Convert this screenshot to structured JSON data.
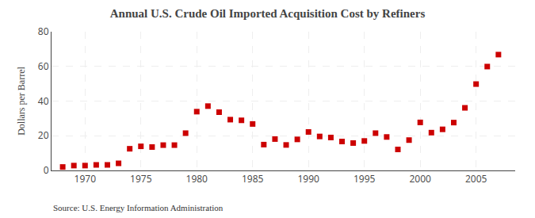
{
  "chart_data": {
    "type": "scatter",
    "title": "Annual U.S. Crude Oil Imported Acquisition Cost by Refiners",
    "y_label": "Dollars per Barrel",
    "annotations": [
      "Source: U.S. Energy Information Administration"
    ],
    "x": [
      1968,
      1969,
      1970,
      1971,
      1972,
      1973,
      1974,
      1975,
      1976,
      1977,
      1978,
      1979,
      1980,
      1981,
      1982,
      1983,
      1984,
      1985,
      1986,
      1987,
      1988,
      1989,
      1990,
      1991,
      1992,
      1993,
      1994,
      1995,
      1996,
      1997,
      1998,
      1999,
      2000,
      2001,
      2002,
      2003,
      2004,
      2005,
      2006,
      2007
    ],
    "values": [
      2.0,
      2.8,
      2.8,
      3.2,
      3.2,
      4.1,
      12.5,
      13.9,
      13.5,
      14.6,
      14.6,
      21.5,
      33.9,
      37.1,
      33.6,
      29.3,
      28.9,
      26.8,
      14.9,
      18.1,
      14.7,
      17.9,
      22.2,
      19.6,
      19.0,
      16.7,
      15.8,
      17.0,
      21.5,
      19.3,
      12.1,
      17.5,
      27.7,
      21.8,
      23.7,
      27.6,
      36.1,
      49.8,
      59.9,
      66.8
    ],
    "color": "#cc0000",
    "marker": "square",
    "xlim": [
      1967.0,
      2008.5
    ],
    "xticks": [
      1970,
      1975,
      1980,
      1985,
      1990,
      1995,
      2000,
      2005
    ],
    "ylim": [
      0,
      80
    ],
    "yticks": [
      0,
      20,
      40,
      60,
      80
    ],
    "grid": true
  }
}
